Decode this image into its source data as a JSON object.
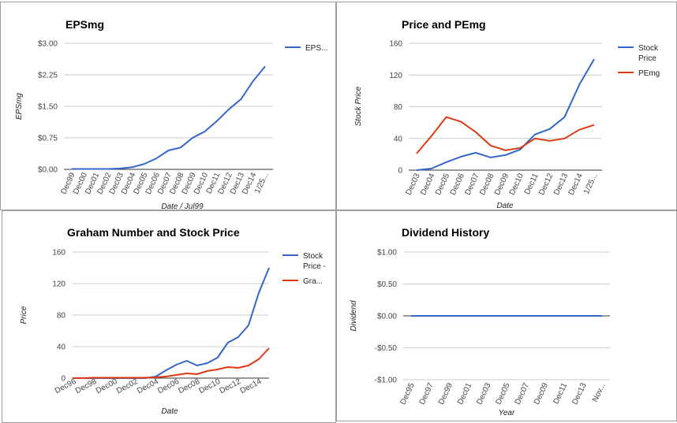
{
  "chart_data": [
    {
      "type": "line",
      "title": "EPSmg",
      "xlabel": "Date / Jul99",
      "ylabel": "EPSmg",
      "ylim": [
        0,
        3
      ],
      "yticks": [
        "$0.00",
        "$0.75",
        "$1.50",
        "$2.25",
        "$3.00"
      ],
      "ytick_values": [
        0,
        0.75,
        1.5,
        2.25,
        3
      ],
      "categories": [
        "Dec99",
        "Dec00",
        "Dec01",
        "Dec02",
        "Dec03",
        "Dec04",
        "Dec05",
        "Dec06",
        "Dec07",
        "Dec08",
        "Dec09",
        "Dec10",
        "Dec11",
        "Dec12",
        "Dec13",
        "Dec14",
        "1/25..."
      ],
      "series": [
        {
          "name": "EPS...",
          "color": "#3366cc",
          "values": [
            0.01,
            0.01,
            0.01,
            0.01,
            0.02,
            0.05,
            0.13,
            0.26,
            0.45,
            0.52,
            0.75,
            0.9,
            1.15,
            1.43,
            1.67,
            2.1,
            2.45
          ]
        }
      ]
    },
    {
      "type": "line",
      "title": "Price and PEmg",
      "xlabel": "Date",
      "ylabel": "Stock Price",
      "ylim": [
        0,
        160
      ],
      "yticks": [
        "0",
        "40",
        "80",
        "120",
        "160"
      ],
      "ytick_values": [
        0,
        40,
        80,
        120,
        160
      ],
      "categories": [
        "Dec03",
        "Dec04",
        "Dec05",
        "Dec06",
        "Dec07",
        "Dec08",
        "Dec09",
        "Dec10",
        "Dec11",
        "Dec12",
        "Dec13",
        "Dec14",
        "1/25..."
      ],
      "series": [
        {
          "name": "Stock Price",
          "color": "#3366cc",
          "values": [
            0,
            2,
            10,
            17,
            22,
            16,
            19,
            26,
            45,
            52,
            67,
            108,
            140
          ]
        },
        {
          "name": "PEmg",
          "color": "#dc3912",
          "values": [
            21,
            43,
            67,
            61,
            48,
            31,
            25,
            28,
            40,
            37,
            40,
            51,
            57
          ]
        }
      ]
    },
    {
      "type": "line",
      "title": "Graham Number and Stock Price",
      "xlabel": "Date",
      "ylabel": "Price",
      "ylim": [
        0,
        160
      ],
      "yticks": [
        "0",
        "40",
        "80",
        "120",
        "160"
      ],
      "ytick_values": [
        0,
        40,
        80,
        120,
        160
      ],
      "x": [
        "1996",
        "1997",
        "1998",
        "1999",
        "2000",
        "2001",
        "2002",
        "2003",
        "2004",
        "2005",
        "2006",
        "2007",
        "2008",
        "2009",
        "2010",
        "2011",
        "2012",
        "2013",
        "2014",
        "2015"
      ],
      "xtick_labels": [
        "Dec96",
        "Dec98",
        "Dec00",
        "Dec02",
        "Dec04",
        "Dec06",
        "Dec08",
        "Dec10",
        "Dec12",
        "Dec14"
      ],
      "series": [
        {
          "name": "Stock Price -",
          "color": "#3366cc",
          "values": [
            0,
            0,
            0,
            0,
            0,
            0,
            0,
            0,
            2,
            10,
            17,
            22,
            16,
            19,
            26,
            45,
            52,
            67,
            108,
            140
          ]
        },
        {
          "name": "Gra...",
          "color": "#dc3912",
          "values": [
            0,
            0,
            0.5,
            0.5,
            0.5,
            0.5,
            0.5,
            0.5,
            1,
            2,
            4,
            6,
            5,
            9,
            11,
            14,
            13,
            16,
            24,
            38
          ]
        }
      ]
    },
    {
      "type": "line",
      "title": "Dividend History",
      "xlabel": "Year",
      "ylabel": "Dividend",
      "ylim": [
        -1,
        1
      ],
      "yticks": [
        "-$1.00",
        "-$0.50",
        "$0.00",
        "$0.50",
        "$1.00"
      ],
      "ytick_values": [
        -1,
        -0.5,
        0,
        0.5,
        1
      ],
      "categories": [
        "Dec95",
        "Dec97",
        "Dec99",
        "Dec01",
        "Dec03",
        "Dec05",
        "Dec07",
        "Dec09",
        "Dec11",
        "Dec13",
        "Nov..."
      ],
      "series": [
        {
          "name": "",
          "color": "#3366cc",
          "values": [
            0,
            0,
            0,
            0,
            0,
            0,
            0,
            0,
            0,
            0,
            0
          ]
        }
      ]
    }
  ]
}
